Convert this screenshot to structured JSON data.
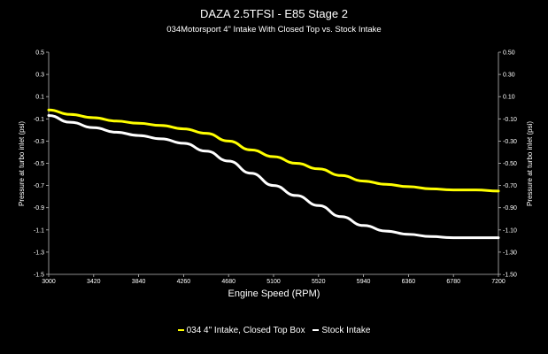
{
  "chart_data": {
    "type": "line",
    "title": "DAZA 2.5TFSI - E85 Stage 2",
    "subtitle": "034Motorsport 4\" Intake With Closed Top vs. Stock Intake",
    "xlabel": "Engine Speed (RPM)",
    "ylabel_left": "Pressure at turbo inlet (psi)",
    "ylabel_right": "Pressure at turbo inlet (psi)",
    "xlim": [
      3000,
      7200
    ],
    "ylim": [
      -1.5,
      0.5
    ],
    "x_ticks": [
      "3000",
      "3420",
      "3840",
      "4260",
      "4680",
      "5100",
      "5520",
      "5940",
      "6360",
      "6780",
      "7200"
    ],
    "y_ticks_left": [
      "0.5",
      "0.3",
      "0.1",
      "-0.1",
      "-0.3",
      "-0.5",
      "-0.7",
      "-0.9",
      "-1.1",
      "-1.3",
      "-1.5"
    ],
    "y_ticks_right": [
      "0.50",
      "0.30",
      "0.10",
      "-0.10",
      "-0.30",
      "-0.50",
      "-0.70",
      "-0.90",
      "-1.10",
      "-1.30",
      "-1.50"
    ],
    "grid": false,
    "legend_position": "bottom",
    "series": [
      {
        "name": "034 4\" Intake, Closed Top Box",
        "color": "#ffff00",
        "x": [
          3000,
          3200,
          3420,
          3630,
          3840,
          4050,
          4260,
          4470,
          4680,
          4890,
          5100,
          5310,
          5520,
          5730,
          5940,
          6150,
          6360,
          6570,
          6780,
          6990,
          7200
        ],
        "y": [
          -0.02,
          -0.06,
          -0.09,
          -0.12,
          -0.14,
          -0.16,
          -0.19,
          -0.23,
          -0.3,
          -0.38,
          -0.44,
          -0.5,
          -0.55,
          -0.61,
          -0.66,
          -0.69,
          -0.71,
          -0.73,
          -0.74,
          -0.74,
          -0.75
        ]
      },
      {
        "name": "Stock Intake",
        "color": "#ffffff",
        "x": [
          3000,
          3200,
          3420,
          3630,
          3840,
          4050,
          4260,
          4470,
          4680,
          4890,
          5100,
          5310,
          5520,
          5730,
          5940,
          6150,
          6360,
          6570,
          6780,
          6990,
          7200
        ],
        "y": [
          -0.07,
          -0.13,
          -0.18,
          -0.22,
          -0.25,
          -0.28,
          -0.32,
          -0.39,
          -0.48,
          -0.59,
          -0.7,
          -0.79,
          -0.88,
          -0.98,
          -1.06,
          -1.11,
          -1.14,
          -1.16,
          -1.17,
          -1.17,
          -1.17
        ]
      }
    ]
  }
}
